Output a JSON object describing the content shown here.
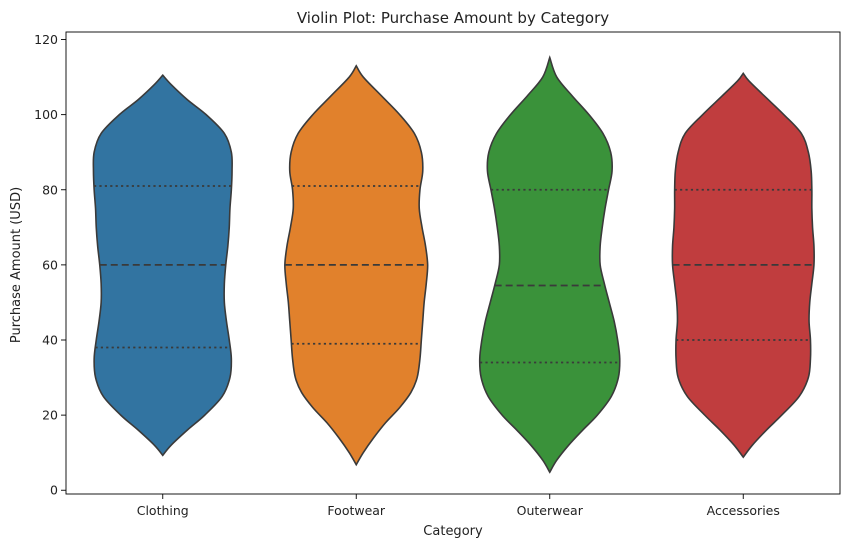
{
  "chart_data": {
    "type": "violin",
    "title": "Violin Plot: Purchase Amount by Category",
    "xlabel": "Category",
    "ylabel": "Purchase Amount (USD)",
    "ylim": [
      -1,
      122
    ],
    "yticks": [
      0,
      20,
      40,
      60,
      80,
      100,
      120
    ],
    "grid": false,
    "categories": [
      "Clothing",
      "Footwear",
      "Outerwear",
      "Accessories"
    ],
    "colors": [
      "#3274a1",
      "#e1812c",
      "#3a923a",
      "#c03d3e"
    ],
    "series": [
      {
        "category": "Clothing",
        "min": 9.3,
        "max": 110.5,
        "q1": 38,
        "median": 60,
        "q3": 81,
        "density": [
          [
            9.3,
            0.0
          ],
          [
            12,
            0.12
          ],
          [
            16,
            0.35
          ],
          [
            20,
            0.6
          ],
          [
            25,
            0.85
          ],
          [
            30,
            0.96
          ],
          [
            35,
            0.98
          ],
          [
            40,
            0.95
          ],
          [
            45,
            0.91
          ],
          [
            50,
            0.88
          ],
          [
            55,
            0.88
          ],
          [
            60,
            0.9
          ],
          [
            65,
            0.93
          ],
          [
            70,
            0.95
          ],
          [
            75,
            0.96
          ],
          [
            80,
            0.98
          ],
          [
            85,
            0.99
          ],
          [
            90,
            0.98
          ],
          [
            95,
            0.88
          ],
          [
            100,
            0.62
          ],
          [
            104,
            0.35
          ],
          [
            108,
            0.12
          ],
          [
            110.5,
            0.0
          ]
        ]
      },
      {
        "category": "Footwear",
        "min": 6.8,
        "max": 113,
        "q1": 39,
        "median": 60,
        "q3": 81,
        "density": [
          [
            6.8,
            0.0
          ],
          [
            10,
            0.1
          ],
          [
            14,
            0.25
          ],
          [
            18,
            0.42
          ],
          [
            22,
            0.62
          ],
          [
            26,
            0.78
          ],
          [
            30,
            0.87
          ],
          [
            35,
            0.91
          ],
          [
            40,
            0.93
          ],
          [
            45,
            0.95
          ],
          [
            50,
            0.97
          ],
          [
            55,
            1.0
          ],
          [
            60,
            1.02
          ],
          [
            65,
            0.99
          ],
          [
            70,
            0.94
          ],
          [
            75,
            0.9
          ],
          [
            80,
            0.91
          ],
          [
            85,
            0.95
          ],
          [
            90,
            0.93
          ],
          [
            95,
            0.83
          ],
          [
            100,
            0.62
          ],
          [
            105,
            0.36
          ],
          [
            110,
            0.1
          ],
          [
            113,
            0.0
          ]
        ]
      },
      {
        "category": "Outerwear",
        "min": 4.8,
        "max": 115.2,
        "q1": 34,
        "median": 54.5,
        "q3": 80,
        "density": [
          [
            4.8,
            0.0
          ],
          [
            8,
            0.1
          ],
          [
            12,
            0.27
          ],
          [
            16,
            0.47
          ],
          [
            20,
            0.68
          ],
          [
            25,
            0.88
          ],
          [
            30,
            0.98
          ],
          [
            35,
            1.0
          ],
          [
            40,
            0.97
          ],
          [
            45,
            0.92
          ],
          [
            50,
            0.85
          ],
          [
            55,
            0.78
          ],
          [
            60,
            0.72
          ],
          [
            65,
            0.72
          ],
          [
            70,
            0.75
          ],
          [
            75,
            0.79
          ],
          [
            80,
            0.84
          ],
          [
            85,
            0.89
          ],
          [
            90,
            0.87
          ],
          [
            95,
            0.76
          ],
          [
            100,
            0.56
          ],
          [
            105,
            0.32
          ],
          [
            110,
            0.1
          ],
          [
            115.2,
            0.0
          ]
        ]
      },
      {
        "category": "Accessories",
        "min": 8.8,
        "max": 111,
        "q1": 40,
        "median": 60,
        "q3": 80,
        "density": [
          [
            8.8,
            0.0
          ],
          [
            12,
            0.13
          ],
          [
            16,
            0.33
          ],
          [
            20,
            0.55
          ],
          [
            25,
            0.8
          ],
          [
            30,
            0.93
          ],
          [
            35,
            0.96
          ],
          [
            40,
            0.96
          ],
          [
            45,
            0.94
          ],
          [
            50,
            0.95
          ],
          [
            55,
            0.98
          ],
          [
            60,
            1.01
          ],
          [
            65,
            1.01
          ],
          [
            70,
            0.99
          ],
          [
            75,
            0.98
          ],
          [
            80,
            0.98
          ],
          [
            85,
            0.97
          ],
          [
            90,
            0.93
          ],
          [
            95,
            0.83
          ],
          [
            100,
            0.58
          ],
          [
            105,
            0.3
          ],
          [
            109,
            0.08
          ],
          [
            111,
            0.0
          ]
        ]
      }
    ]
  }
}
